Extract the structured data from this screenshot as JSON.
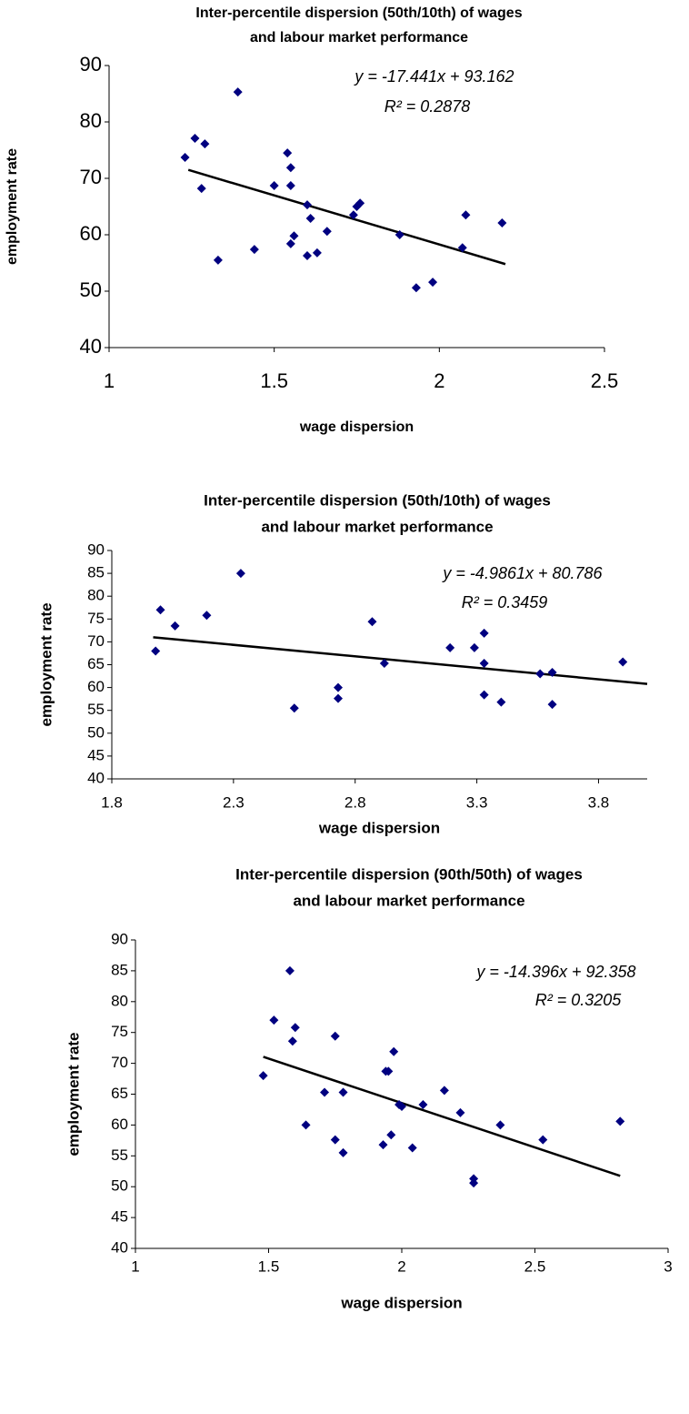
{
  "chart_data": [
    {
      "type": "scatter",
      "title": [
        "Inter-percentile dispersion (50th/10th) of wages",
        "and labour market performance"
      ],
      "x_label": "wage dispersion",
      "y_label": "employment rate",
      "color": "#000080",
      "x": [
        1.23,
        1.26,
        1.29,
        1.28,
        1.33,
        1.39,
        1.44,
        1.5,
        1.54,
        1.55,
        1.55,
        1.55,
        1.56,
        1.6,
        1.61,
        1.6,
        1.63,
        1.66,
        1.74,
        1.76,
        1.75,
        1.88,
        1.93,
        1.98,
        2.07,
        2.08,
        2.19
      ],
      "values": [
        73.7,
        77.1,
        76.1,
        68.2,
        55.5,
        85.3,
        57.4,
        68.7,
        74.5,
        68.7,
        71.9,
        58.4,
        59.8,
        65.3,
        62.9,
        56.3,
        56.8,
        60.6,
        63.5,
        65.6,
        65.0,
        60.0,
        50.6,
        51.6,
        57.7,
        63.5,
        62.1
      ],
      "trendline": {
        "color": "#000000",
        "x": [
          1.24,
          2.2
        ],
        "values": [
          71.5,
          54.8
        ]
      },
      "annotations": [
        "y = -17.441x + 93.162",
        "R² = 0.2878"
      ],
      "xlim": [
        1,
        2.5
      ],
      "xticks": [
        1,
        1.5,
        2,
        2.5
      ],
      "ylim": [
        40,
        90
      ],
      "yticks": [
        40,
        50,
        60,
        70,
        80,
        90
      ]
    },
    {
      "type": "scatter",
      "title": [
        "Inter-percentile dispersion (50th/10th) of wages",
        "and labour market performance"
      ],
      "x_label": "wage dispersion",
      "y_label": "employment rate",
      "color": "#000080",
      "x": [
        1.98,
        2.0,
        2.06,
        2.19,
        2.33,
        2.55,
        2.73,
        2.73,
        2.87,
        2.92,
        3.19,
        3.29,
        3.33,
        3.33,
        3.33,
        3.4,
        3.56,
        3.61,
        3.61,
        3.9
      ],
      "values": [
        68,
        77,
        73.5,
        75.8,
        85,
        55.5,
        60,
        57.6,
        74.4,
        65.3,
        68.7,
        68.7,
        71.9,
        65.3,
        58.4,
        56.8,
        63,
        63.3,
        56.3,
        65.6
      ],
      "trendline": {
        "color": "#000000",
        "x": [
          1.97,
          4.0
        ],
        "values": [
          71.0,
          60.8
        ]
      },
      "annotations": [
        "y = -4.9861x + 80.786",
        "R² = 0.3459"
      ],
      "xlim": [
        1.8,
        4.0
      ],
      "xticks": [
        1.8,
        2.3,
        2.8,
        3.3,
        3.8
      ],
      "ylim": [
        40,
        90
      ],
      "yticks": [
        40,
        45,
        50,
        55,
        60,
        65,
        70,
        75,
        80,
        85,
        90
      ]
    },
    {
      "type": "scatter",
      "title": [
        "Inter-percentile dispersion (90th/50th) of wages",
        "and labour market performance"
      ],
      "x_label": "wage dispersion",
      "y_label": "employment rate",
      "color": "#000080",
      "x": [
        1.48,
        1.52,
        1.58,
        1.59,
        1.6,
        1.64,
        1.71,
        1.75,
        1.75,
        1.78,
        1.78,
        1.93,
        1.94,
        1.95,
        1.96,
        1.97,
        1.99,
        2.0,
        2.04,
        2.08,
        2.16,
        2.22,
        2.27,
        2.27,
        2.37,
        2.53,
        2.82
      ],
      "values": [
        68,
        77,
        85,
        73.6,
        75.8,
        60,
        65.3,
        74.4,
        57.6,
        65.3,
        55.5,
        56.8,
        68.7,
        68.7,
        58.4,
        71.9,
        63.3,
        63,
        56.3,
        63.3,
        65.6,
        62,
        50.6,
        51.3,
        60,
        57.6,
        60.6
      ],
      "trendline": {
        "color": "#000000",
        "x": [
          1.48,
          2.82
        ],
        "values": [
          71.05,
          51.76
        ]
      },
      "annotations": [
        "y = -14.396x + 92.358",
        "R² = 0.3205"
      ],
      "xlim": [
        1,
        3
      ],
      "xticks": [
        1,
        1.5,
        2,
        2.5,
        3
      ],
      "ylim": [
        40,
        90
      ],
      "yticks": [
        40,
        45,
        50,
        55,
        60,
        65,
        70,
        75,
        80,
        85,
        90
      ]
    }
  ]
}
